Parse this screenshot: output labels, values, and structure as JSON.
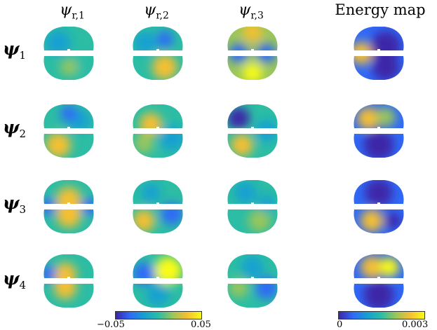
{
  "columns": [
    {
      "symbol": "ψ",
      "sub": "r,1"
    },
    {
      "symbol": "ψ",
      "sub": "r,2"
    },
    {
      "symbol": "ψ",
      "sub": "r,3"
    },
    {
      "title": "Energy map"
    }
  ],
  "rows": [
    {
      "symbol": "ψ",
      "sub": "1"
    },
    {
      "symbol": "ψ",
      "sub": "2"
    },
    {
      "symbol": "ψ",
      "sub": "3"
    },
    {
      "symbol": "ψ",
      "sub": "4"
    }
  ],
  "colorbar_modes": {
    "min": "−0.05",
    "max": "0.05"
  },
  "colorbar_energy": {
    "min": "0",
    "max": "0.003"
  },
  "colors": {
    "colormap": [
      "#3e26a8",
      "#2f6af7",
      "#14a0d2",
      "#2cbda4",
      "#99c65b",
      "#f5bf32",
      "#f9fb15"
    ]
  }
}
